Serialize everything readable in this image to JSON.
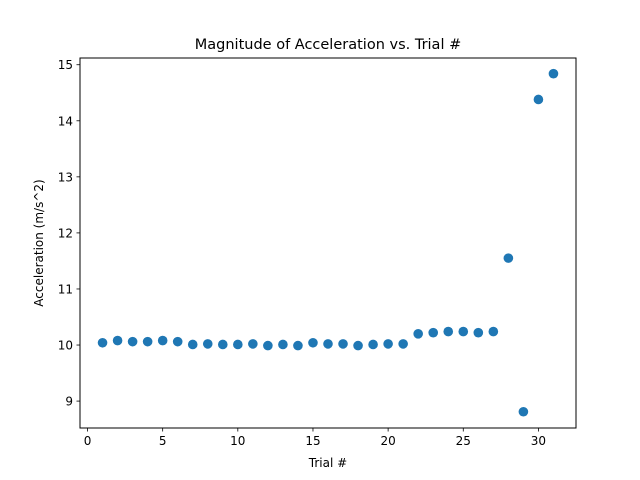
{
  "chart_data": {
    "type": "scatter",
    "title": "Magnitude of Acceleration vs. Trial #",
    "xlabel": "Trial #",
    "ylabel": "Acceleration (m/s^2)",
    "xlim": [
      -0.5,
      32.5
    ],
    "ylim": [
      8.52,
      15.12
    ],
    "xticks": [
      0,
      5,
      10,
      15,
      20,
      25,
      30
    ],
    "yticks": [
      9,
      10,
      11,
      12,
      13,
      14,
      15
    ],
    "grid": false,
    "marker_color": "#1f77b4",
    "series": [
      {
        "x": [
          1,
          2,
          3,
          4,
          5,
          6,
          7,
          8,
          9,
          10,
          11,
          12,
          13,
          14,
          15,
          16,
          17,
          18,
          19,
          20,
          21,
          22,
          23,
          24,
          25,
          26,
          27,
          28,
          29,
          30,
          31
        ],
        "y": [
          10.04,
          10.08,
          10.06,
          10.06,
          10.08,
          10.06,
          10.01,
          10.02,
          10.01,
          10.01,
          10.02,
          9.99,
          10.01,
          9.99,
          10.04,
          10.02,
          10.02,
          9.99,
          10.01,
          10.02,
          10.02,
          10.2,
          10.22,
          10.24,
          10.24,
          10.22,
          10.24,
          11.55,
          8.81,
          14.38,
          14.84
        ]
      }
    ]
  }
}
